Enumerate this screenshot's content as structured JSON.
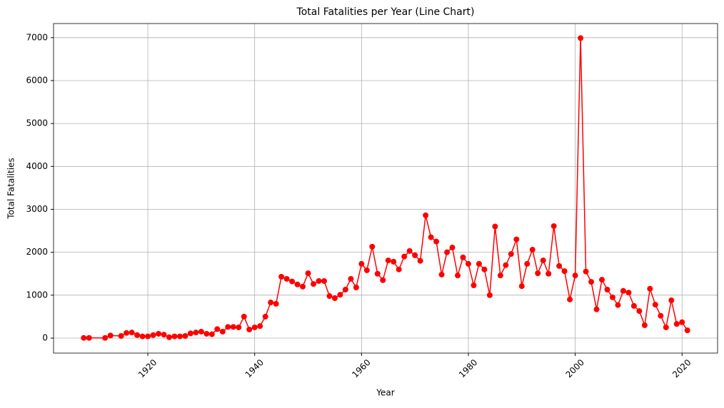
{
  "chart_data": {
    "type": "line",
    "title": "Total Fatalities per Year (Line Chart)",
    "x_label": "Year",
    "y_label": "Total Fatalities",
    "x": [
      1908,
      1909,
      1912,
      1913,
      1915,
      1916,
      1917,
      1918,
      1919,
      1920,
      1921,
      1922,
      1923,
      1924,
      1925,
      1926,
      1927,
      1928,
      1929,
      1930,
      1931,
      1932,
      1933,
      1934,
      1935,
      1936,
      1937,
      1938,
      1939,
      1940,
      1941,
      1942,
      1943,
      1944,
      1945,
      1946,
      1947,
      1948,
      1949,
      1950,
      1951,
      1952,
      1953,
      1954,
      1955,
      1956,
      1957,
      1958,
      1959,
      1960,
      1961,
      1962,
      1963,
      1964,
      1965,
      1966,
      1967,
      1968,
      1969,
      1970,
      1971,
      1972,
      1973,
      1974,
      1975,
      1976,
      1977,
      1978,
      1979,
      1980,
      1981,
      1982,
      1983,
      1984,
      1985,
      1986,
      1987,
      1988,
      1989,
      1990,
      1991,
      1992,
      1993,
      1994,
      1995,
      1996,
      1997,
      1998,
      1999,
      2000,
      2001,
      2002,
      2003,
      2004,
      2005,
      2006,
      2007,
      2008,
      2009,
      2010,
      2011,
      2012,
      2013,
      2014,
      2015,
      2016,
      2017,
      2018,
      2019,
      2020,
      2021
    ],
    "values": [
      5,
      5,
      5,
      60,
      50,
      120,
      130,
      70,
      40,
      40,
      70,
      100,
      80,
      20,
      40,
      40,
      50,
      110,
      130,
      150,
      100,
      90,
      210,
      150,
      260,
      260,
      250,
      500,
      200,
      250,
      280,
      500,
      830,
      800,
      1430,
      1380,
      1320,
      1250,
      1200,
      1510,
      1260,
      1330,
      1330,
      980,
      930,
      1010,
      1130,
      1380,
      1180,
      1730,
      1580,
      2130,
      1500,
      1350,
      1810,
      1780,
      1600,
      1900,
      2030,
      1930,
      1800,
      2860,
      2350,
      2250,
      1480,
      2000,
      2110,
      1460,
      1880,
      1730,
      1230,
      1730,
      1600,
      1000,
      2600,
      1460,
      1700,
      1960,
      2300,
      1210,
      1730,
      2060,
      1510,
      1810,
      1500,
      2610,
      1680,
      1560,
      900,
      1460,
      6990,
      1550,
      1310,
      670,
      1360,
      1130,
      950,
      770,
      1100,
      1060,
      750,
      630,
      300,
      1150,
      780,
      520,
      250,
      880,
      330,
      370,
      180
    ],
    "color": "#ff0000",
    "xlim": [
      1902.35,
      2026.65
    ],
    "ylim": [
      -349,
      7329
    ],
    "xticks": [
      1920,
      1940,
      1960,
      1980,
      2000,
      2020
    ],
    "yticks": [
      0,
      1000,
      2000,
      3000,
      4000,
      5000,
      6000,
      7000
    ],
    "grid": true
  }
}
